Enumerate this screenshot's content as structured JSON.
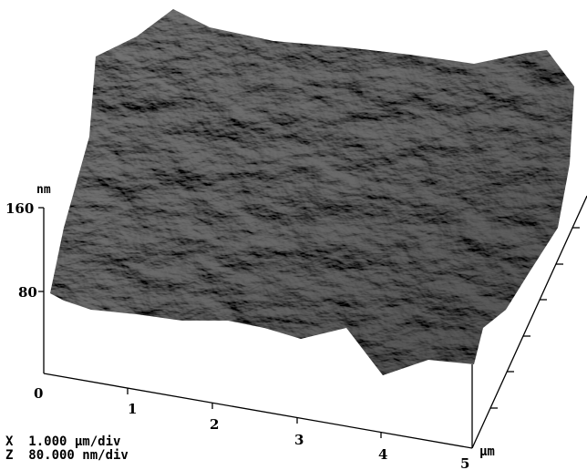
{
  "z_axis": {
    "unit": "nm",
    "ticks": [
      "160",
      "80"
    ]
  },
  "x_axis": {
    "ticks": [
      "0",
      "1",
      "2",
      "3",
      "4",
      "5"
    ],
    "unit": "μm"
  },
  "scale": [
    "X  1.000 μm/div",
    "Z  80.000 nm/div"
  ]
}
